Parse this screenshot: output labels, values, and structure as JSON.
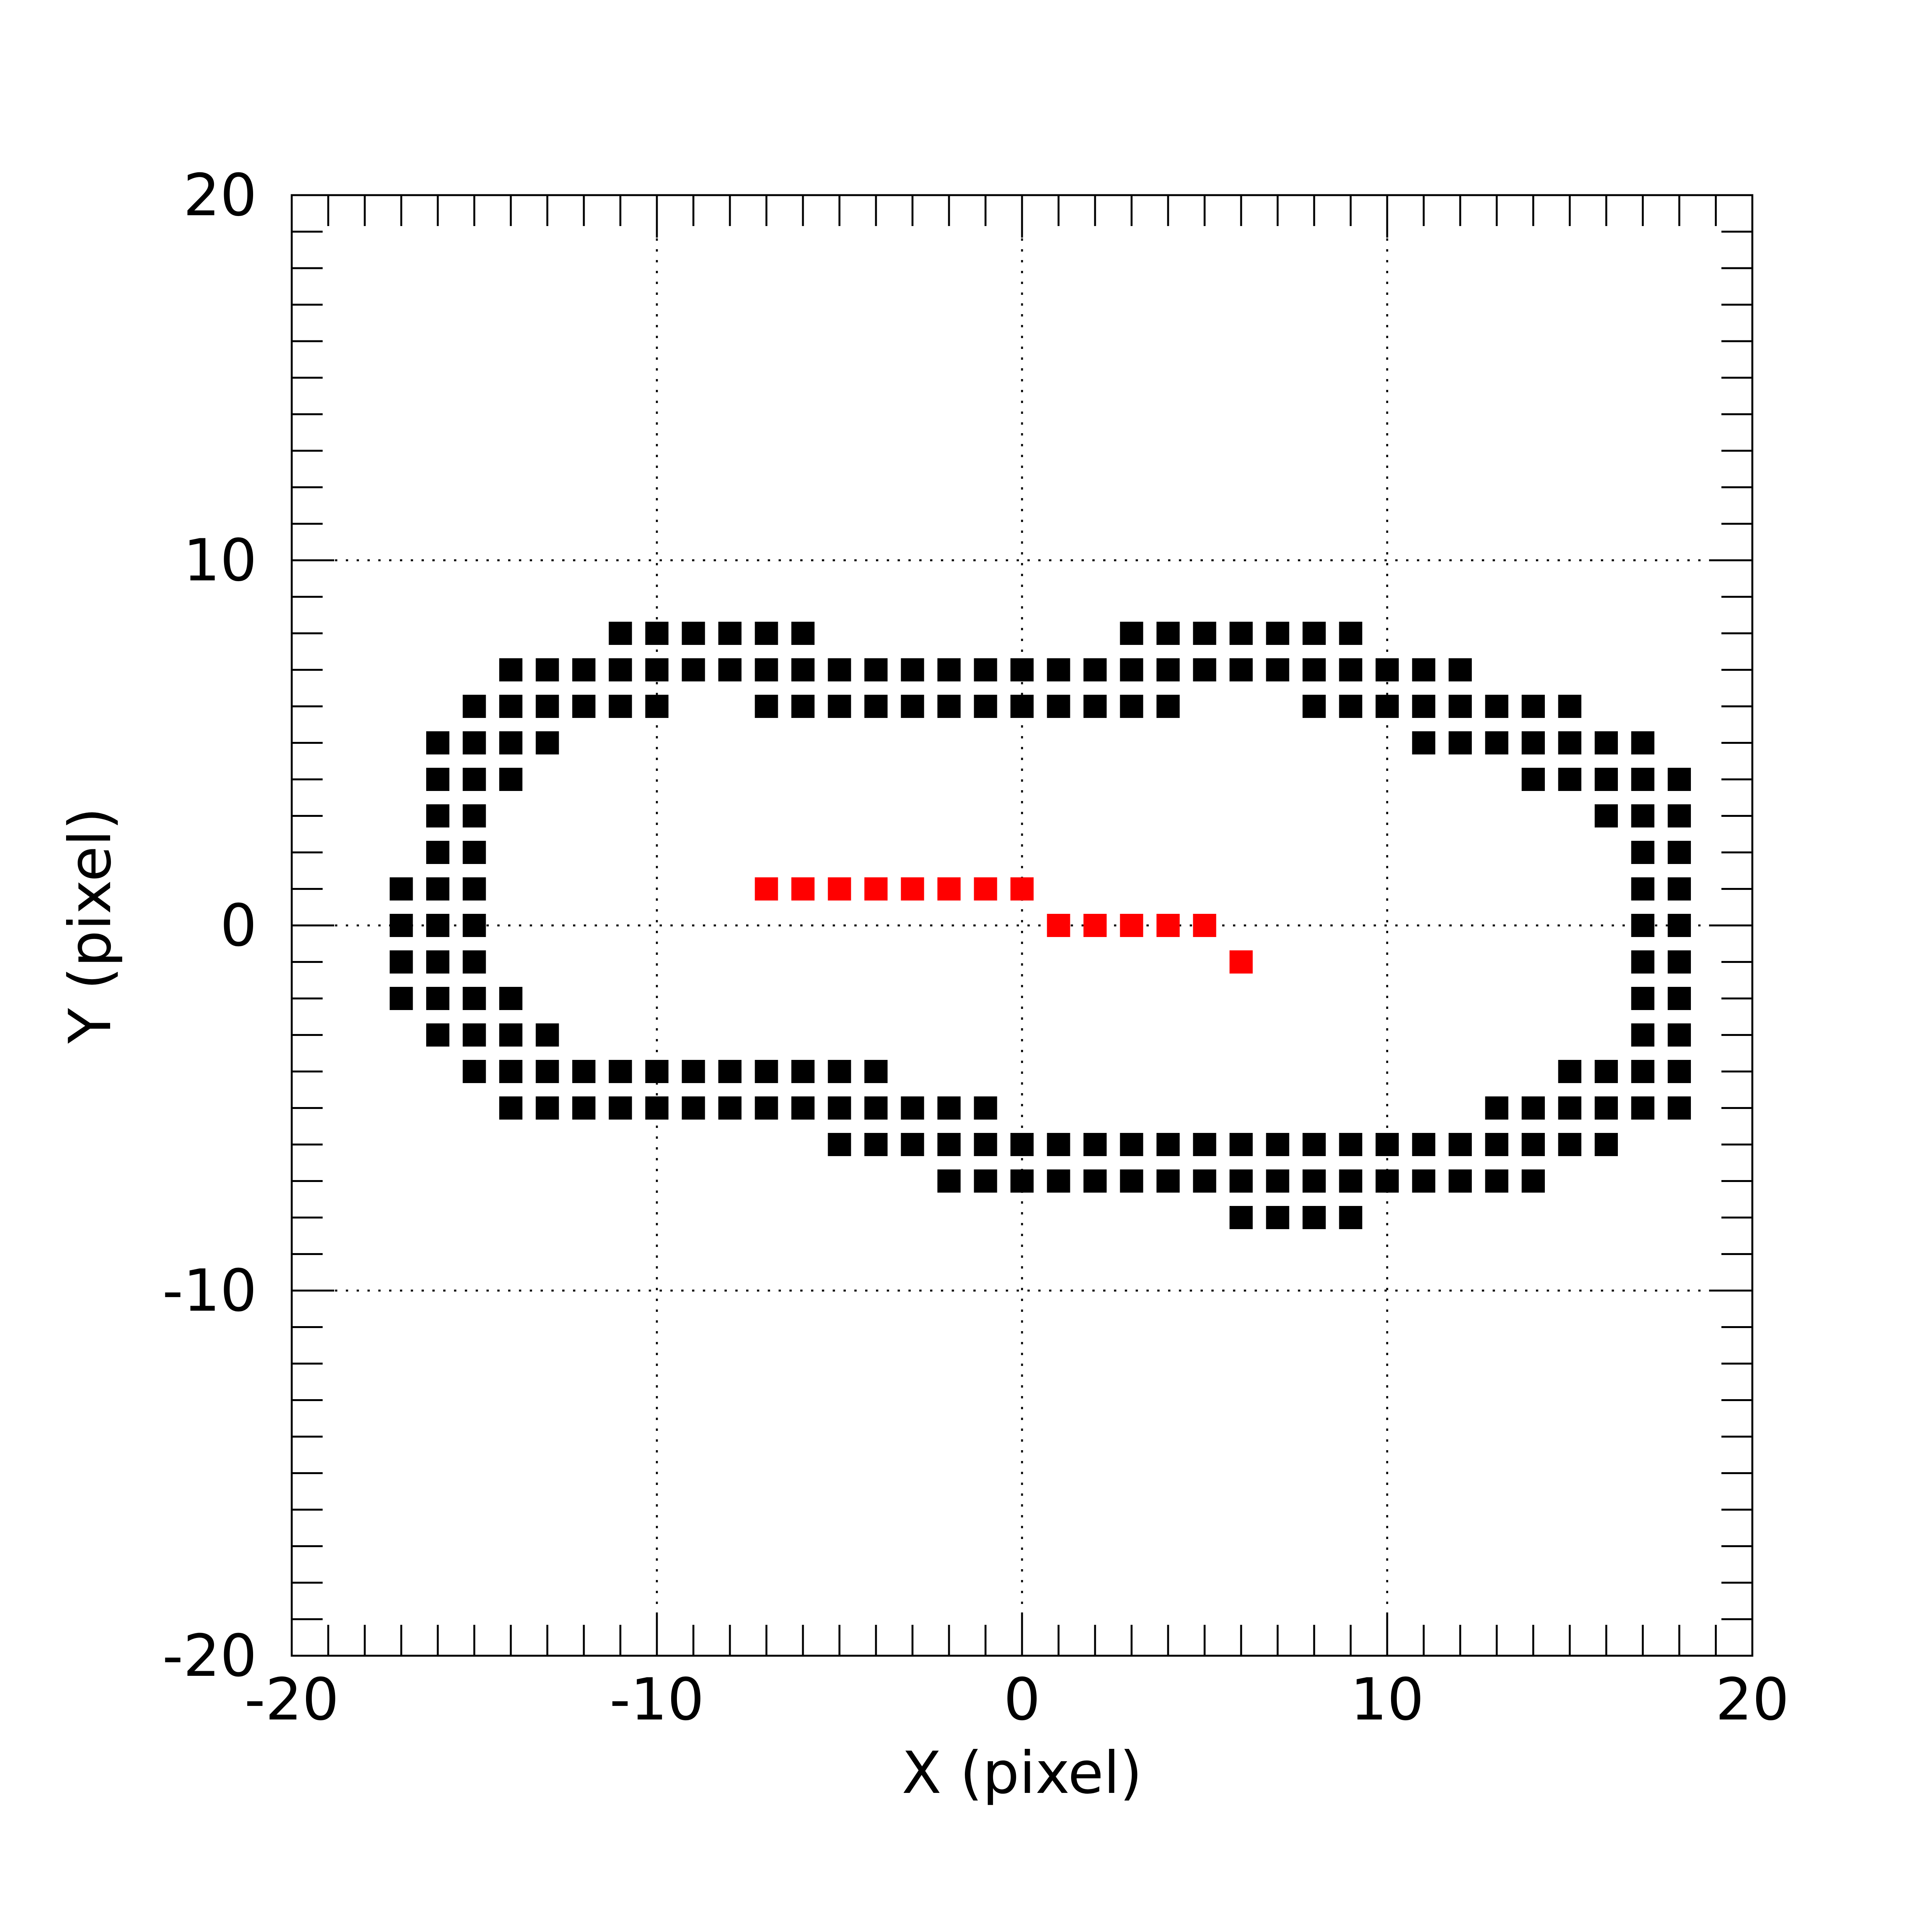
{
  "chart_data": {
    "type": "scatter",
    "title": "",
    "xlabel": "X (pixel)",
    "ylabel": "Y (pixel)",
    "xlim": [
      -20,
      20
    ],
    "ylim": [
      -20,
      20
    ],
    "xticks": [
      "-20",
      "-10",
      "0",
      "10",
      "20"
    ],
    "yticks": [
      "-20",
      "-10",
      "0",
      "10",
      "20"
    ],
    "grid": true,
    "marker": "square",
    "series": [
      {
        "color": "#000000",
        "points": [
          [
            -11,
            8
          ],
          [
            -10,
            8
          ],
          [
            -9,
            8
          ],
          [
            -8,
            8
          ],
          [
            -7,
            8
          ],
          [
            -6,
            8
          ],
          [
            3,
            8
          ],
          [
            4,
            8
          ],
          [
            5,
            8
          ],
          [
            6,
            8
          ],
          [
            7,
            8
          ],
          [
            8,
            8
          ],
          [
            9,
            8
          ],
          [
            -14,
            7
          ],
          [
            -13,
            7
          ],
          [
            -12,
            7
          ],
          [
            -11,
            7
          ],
          [
            -10,
            7
          ],
          [
            -9,
            7
          ],
          [
            -8,
            7
          ],
          [
            -7,
            7
          ],
          [
            -6,
            7
          ],
          [
            -5,
            7
          ],
          [
            -4,
            7
          ],
          [
            -3,
            7
          ],
          [
            -2,
            7
          ],
          [
            -1,
            7
          ],
          [
            0,
            7
          ],
          [
            1,
            7
          ],
          [
            2,
            7
          ],
          [
            3,
            7
          ],
          [
            4,
            7
          ],
          [
            5,
            7
          ],
          [
            6,
            7
          ],
          [
            7,
            7
          ],
          [
            8,
            7
          ],
          [
            9,
            7
          ],
          [
            10,
            7
          ],
          [
            11,
            7
          ],
          [
            12,
            7
          ],
          [
            -15,
            6
          ],
          [
            -14,
            6
          ],
          [
            -13,
            6
          ],
          [
            -12,
            6
          ],
          [
            -11,
            6
          ],
          [
            -10,
            6
          ],
          [
            -7,
            6
          ],
          [
            -6,
            6
          ],
          [
            -5,
            6
          ],
          [
            -4,
            6
          ],
          [
            -3,
            6
          ],
          [
            -2,
            6
          ],
          [
            -1,
            6
          ],
          [
            0,
            6
          ],
          [
            1,
            6
          ],
          [
            2,
            6
          ],
          [
            3,
            6
          ],
          [
            4,
            6
          ],
          [
            8,
            6
          ],
          [
            9,
            6
          ],
          [
            10,
            6
          ],
          [
            11,
            6
          ],
          [
            12,
            6
          ],
          [
            13,
            6
          ],
          [
            14,
            6
          ],
          [
            15,
            6
          ],
          [
            -16,
            5
          ],
          [
            -15,
            5
          ],
          [
            -14,
            5
          ],
          [
            -13,
            5
          ],
          [
            11,
            5
          ],
          [
            12,
            5
          ],
          [
            13,
            5
          ],
          [
            14,
            5
          ],
          [
            15,
            5
          ],
          [
            16,
            5
          ],
          [
            17,
            5
          ],
          [
            -16,
            4
          ],
          [
            -15,
            4
          ],
          [
            -14,
            4
          ],
          [
            14,
            4
          ],
          [
            15,
            4
          ],
          [
            16,
            4
          ],
          [
            17,
            4
          ],
          [
            18,
            4
          ],
          [
            -16,
            3
          ],
          [
            -15,
            3
          ],
          [
            16,
            3
          ],
          [
            17,
            3
          ],
          [
            18,
            3
          ],
          [
            -16,
            2
          ],
          [
            -15,
            2
          ],
          [
            17,
            2
          ],
          [
            18,
            2
          ],
          [
            -17,
            1
          ],
          [
            -16,
            1
          ],
          [
            -15,
            1
          ],
          [
            17,
            1
          ],
          [
            18,
            1
          ],
          [
            -17,
            0
          ],
          [
            -16,
            0
          ],
          [
            -15,
            0
          ],
          [
            17,
            0
          ],
          [
            18,
            0
          ],
          [
            -17,
            -1
          ],
          [
            -16,
            -1
          ],
          [
            -15,
            -1
          ],
          [
            17,
            -1
          ],
          [
            18,
            -1
          ],
          [
            -17,
            -2
          ],
          [
            -16,
            -2
          ],
          [
            -15,
            -2
          ],
          [
            -14,
            -2
          ],
          [
            17,
            -2
          ],
          [
            18,
            -2
          ],
          [
            -16,
            -3
          ],
          [
            -15,
            -3
          ],
          [
            -14,
            -3
          ],
          [
            -13,
            -3
          ],
          [
            17,
            -3
          ],
          [
            18,
            -3
          ],
          [
            -15,
            -4
          ],
          [
            -14,
            -4
          ],
          [
            -13,
            -4
          ],
          [
            -12,
            -4
          ],
          [
            -11,
            -4
          ],
          [
            -10,
            -4
          ],
          [
            -9,
            -4
          ],
          [
            -8,
            -4
          ],
          [
            -7,
            -4
          ],
          [
            -6,
            -4
          ],
          [
            -5,
            -4
          ],
          [
            -4,
            -4
          ],
          [
            15,
            -4
          ],
          [
            16,
            -4
          ],
          [
            17,
            -4
          ],
          [
            18,
            -4
          ],
          [
            -14,
            -5
          ],
          [
            -13,
            -5
          ],
          [
            -12,
            -5
          ],
          [
            -11,
            -5
          ],
          [
            -10,
            -5
          ],
          [
            -9,
            -5
          ],
          [
            -8,
            -5
          ],
          [
            -7,
            -5
          ],
          [
            -6,
            -5
          ],
          [
            -5,
            -5
          ],
          [
            -4,
            -5
          ],
          [
            -3,
            -5
          ],
          [
            -2,
            -5
          ],
          [
            -1,
            -5
          ],
          [
            13,
            -5
          ],
          [
            14,
            -5
          ],
          [
            15,
            -5
          ],
          [
            16,
            -5
          ],
          [
            17,
            -5
          ],
          [
            18,
            -5
          ],
          [
            -5,
            -6
          ],
          [
            -4,
            -6
          ],
          [
            -3,
            -6
          ],
          [
            -2,
            -6
          ],
          [
            -1,
            -6
          ],
          [
            0,
            -6
          ],
          [
            1,
            -6
          ],
          [
            2,
            -6
          ],
          [
            3,
            -6
          ],
          [
            4,
            -6
          ],
          [
            5,
            -6
          ],
          [
            6,
            -6
          ],
          [
            7,
            -6
          ],
          [
            8,
            -6
          ],
          [
            9,
            -6
          ],
          [
            10,
            -6
          ],
          [
            11,
            -6
          ],
          [
            12,
            -6
          ],
          [
            13,
            -6
          ],
          [
            14,
            -6
          ],
          [
            15,
            -6
          ],
          [
            16,
            -6
          ],
          [
            -2,
            -7
          ],
          [
            -1,
            -7
          ],
          [
            0,
            -7
          ],
          [
            1,
            -7
          ],
          [
            2,
            -7
          ],
          [
            3,
            -7
          ],
          [
            4,
            -7
          ],
          [
            5,
            -7
          ],
          [
            6,
            -7
          ],
          [
            7,
            -7
          ],
          [
            8,
            -7
          ],
          [
            9,
            -7
          ],
          [
            10,
            -7
          ],
          [
            11,
            -7
          ],
          [
            12,
            -7
          ],
          [
            13,
            -7
          ],
          [
            14,
            -7
          ],
          [
            6,
            -8
          ],
          [
            7,
            -8
          ],
          [
            8,
            -8
          ],
          [
            9,
            -8
          ]
        ]
      },
      {
        "color": "#ff0000",
        "points": [
          [
            -7,
            1
          ],
          [
            -6,
            1
          ],
          [
            -5,
            1
          ],
          [
            -4,
            1
          ],
          [
            -3,
            1
          ],
          [
            -2,
            1
          ],
          [
            -1,
            1
          ],
          [
            0,
            1
          ],
          [
            1,
            0
          ],
          [
            2,
            0
          ],
          [
            3,
            0
          ],
          [
            4,
            0
          ],
          [
            5,
            0
          ],
          [
            6,
            -1
          ]
        ]
      }
    ]
  }
}
